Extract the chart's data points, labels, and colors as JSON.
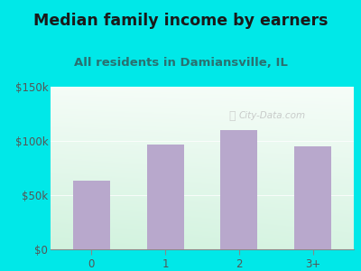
{
  "categories": [
    "0",
    "1",
    "2",
    "3+"
  ],
  "values": [
    63000,
    97000,
    110000,
    95000
  ],
  "bar_color": "#b8a8cc",
  "title": "Median family income by earners",
  "subtitle": "All residents in Damiansville, IL",
  "title_fontsize": 12.5,
  "subtitle_fontsize": 9.5,
  "ylim": [
    0,
    150000
  ],
  "yticks": [
    0,
    50000,
    100000,
    150000
  ],
  "ytick_labels": [
    "$0",
    "$50k",
    "$100k",
    "$150k"
  ],
  "outer_bg": "#00e8e8",
  "watermark": "City-Data.com",
  "title_color": "#1a1a1a",
  "subtitle_color": "#2a7070",
  "tick_color": "#555555",
  "tick_fontsize": 8.5
}
